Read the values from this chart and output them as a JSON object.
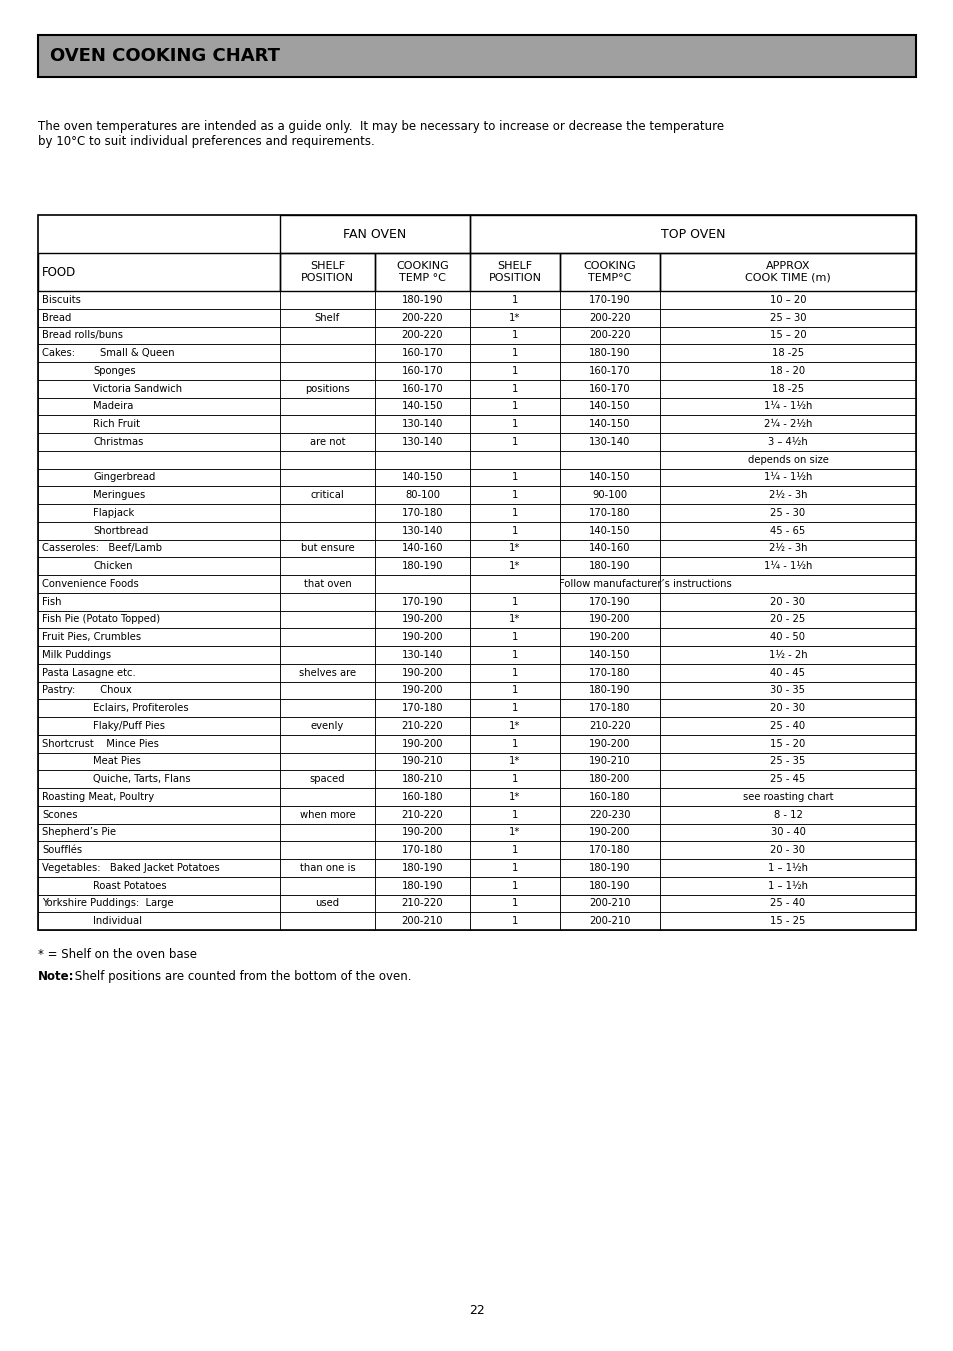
{
  "title": "OVEN COOKING CHART",
  "intro_text": "The oven temperatures are intended as a guide only.  It may be necessary to increase or decrease the temperature\nby 10°C to suit individual preferences and requirements.",
  "footer_note1": "* = Shelf on the oven base",
  "footer_note2_bold": "Note:",
  "footer_note2_rest": " Shelf positions are counted from the bottom of the oven.",
  "page_number": "22",
  "title_bg": "#a0a0a0",
  "bg_color": "#ffffff",
  "border_color": "#000000",
  "font_size": 7.2,
  "header_font_size": 8.2,
  "rows": [
    [
      "Biscuits",
      "",
      "180-190",
      "1",
      "170-190",
      "10 – 20"
    ],
    [
      "Bread",
      "Shelf",
      "200-220",
      "1*",
      "200-220",
      "25 – 30"
    ],
    [
      "Bread rolls/buns",
      "",
      "200-220",
      "1",
      "200-220",
      "15 – 20"
    ],
    [
      "Cakes:        Small & Queen",
      "",
      "160-170",
      "1",
      "180-190",
      "18 -25"
    ],
    [
      "                Sponges",
      "",
      "160-170",
      "1",
      "160-170",
      "18 - 20"
    ],
    [
      "                Victoria Sandwich",
      "positions",
      "160-170",
      "1",
      "160-170",
      "18 -25"
    ],
    [
      "                Madeira",
      "",
      "140-150",
      "1",
      "140-150",
      "1¼ - 1½h"
    ],
    [
      "                Rich Fruit",
      "",
      "130-140",
      "1",
      "140-150",
      "2¼ - 2½h"
    ],
    [
      "                Christmas",
      "are not",
      "130-140",
      "1",
      "130-140",
      "3 – 4½h"
    ],
    [
      "",
      "",
      "",
      "",
      "",
      "depends on size"
    ],
    [
      "                Gingerbread",
      "",
      "140-150",
      "1",
      "140-150",
      "1¼ - 1½h"
    ],
    [
      "                Meringues",
      "critical",
      "80-100",
      "1",
      "90-100",
      "2½ - 3h"
    ],
    [
      "                Flapjack",
      "",
      "170-180",
      "1",
      "170-180",
      "25 - 30"
    ],
    [
      "                Shortbread",
      "",
      "130-140",
      "1",
      "140-150",
      "45 - 65"
    ],
    [
      "Casseroles:   Beef/Lamb",
      "but ensure",
      "140-160",
      "1*",
      "140-160",
      "2½ - 3h"
    ],
    [
      "                Chicken",
      "",
      "180-190",
      "1*",
      "180-190",
      "1¼ - 1½h"
    ],
    [
      "Convenience Foods",
      "that oven",
      "Follow manufacturer’s instructions",
      "",
      "",
      ""
    ],
    [
      "Fish",
      "",
      "170-190",
      "1",
      "170-190",
      "20 - 30"
    ],
    [
      "Fish Pie (Potato Topped)",
      "",
      "190-200",
      "1*",
      "190-200",
      "20 - 25"
    ],
    [
      "Fruit Pies, Crumbles",
      "",
      "190-200",
      "1",
      "190-200",
      "40 - 50"
    ],
    [
      "Milk Puddings",
      "",
      "130-140",
      "1",
      "140-150",
      "1½ - 2h"
    ],
    [
      "Pasta Lasagne etc.",
      "shelves are",
      "190-200",
      "1",
      "170-180",
      "40 - 45"
    ],
    [
      "Pastry:        Choux",
      "",
      "190-200",
      "1",
      "180-190",
      "30 - 35"
    ],
    [
      "                Eclairs, Profiteroles",
      "",
      "170-180",
      "1",
      "170-180",
      "20 - 30"
    ],
    [
      "                Flaky/Puff Pies",
      "evenly",
      "210-220",
      "1*",
      "210-220",
      "25 - 40"
    ],
    [
      "Shortcrust    Mince Pies",
      "",
      "190-200",
      "1",
      "190-200",
      "15 - 20"
    ],
    [
      "                Meat Pies",
      "",
      "190-210",
      "1*",
      "190-210",
      "25 - 35"
    ],
    [
      "                Quiche, Tarts, Flans",
      "spaced",
      "180-210",
      "1",
      "180-200",
      "25 - 45"
    ],
    [
      "Roasting Meat, Poultry",
      "",
      "160-180",
      "1*",
      "160-180",
      "see roasting chart"
    ],
    [
      "Scones",
      "when more",
      "210-220",
      "1",
      "220-230",
      "8 - 12"
    ],
    [
      "Shepherd’s Pie",
      "",
      "190-200",
      "1*",
      "190-200",
      "30 - 40"
    ],
    [
      "Soufflés",
      "",
      "170-180",
      "1",
      "170-180",
      "20 - 30"
    ],
    [
      "Vegetables:   Baked Jacket Potatoes",
      "than one is",
      "180-190",
      "1",
      "180-190",
      "1 – 1½h"
    ],
    [
      "                Roast Potatoes",
      "",
      "180-190",
      "1",
      "180-190",
      "1 – 1½h"
    ],
    [
      "Yorkshire Puddings:  Large",
      "used",
      "210-220",
      "1",
      "200-210",
      "25 - 40"
    ],
    [
      "                Individual",
      "",
      "200-210",
      "1",
      "200-210",
      "15 - 25"
    ]
  ]
}
